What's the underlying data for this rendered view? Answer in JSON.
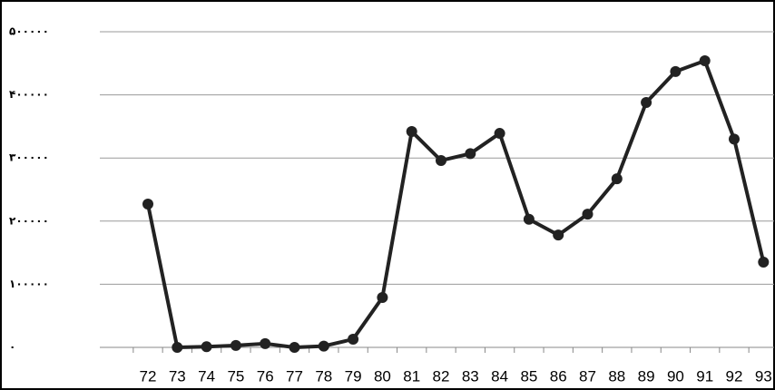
{
  "chart_data": {
    "type": "line",
    "categories": [
      "72",
      "73",
      "74",
      "75",
      "76",
      "77",
      "78",
      "79",
      "80",
      "81",
      "82",
      "83",
      "84",
      "85",
      "86",
      "87",
      "88",
      "89",
      "90",
      "91",
      "92",
      "93"
    ],
    "series": [
      {
        "color": "#222222",
        "values": [
          227000,
          0,
          1000,
          3000,
          6000,
          0,
          2000,
          13000,
          79000,
          342000,
          296000,
          307000,
          339000,
          203000,
          178000,
          211000,
          267000,
          388000,
          437000,
          454000,
          330000,
          135000
        ]
      }
    ],
    "ylim": [
      0,
      500000
    ],
    "yticks": [
      {
        "value": 0,
        "label": "۰"
      },
      {
        "value": 100000,
        "label": "۱۰۰۰۰۰"
      },
      {
        "value": 200000,
        "label": "۲۰۰۰۰۰"
      },
      {
        "value": 300000,
        "label": "۳۰۰۰۰۰"
      },
      {
        "value": 400000,
        "label": "۴۰۰۰۰۰"
      },
      {
        "value": 500000,
        "label": "۵۰۰۰۰۰"
      }
    ],
    "grid": true
  }
}
